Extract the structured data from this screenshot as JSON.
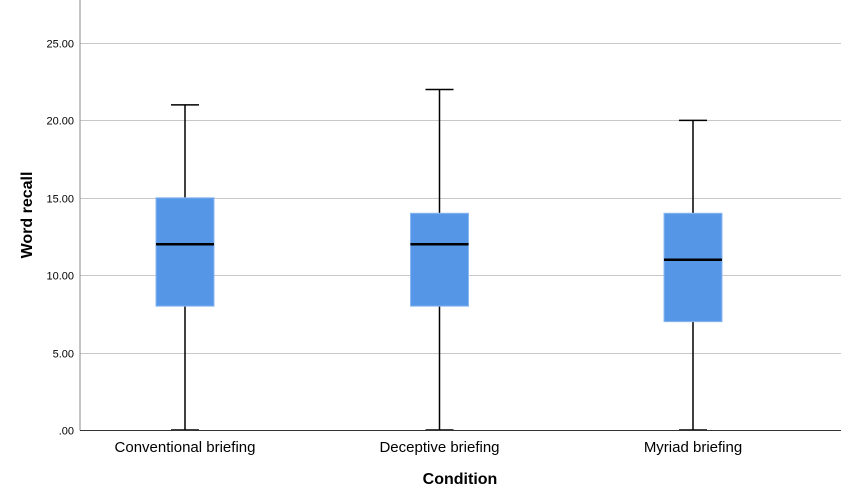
{
  "chart_data": {
    "type": "boxplot",
    "title": "",
    "xlabel": "Condition",
    "ylabel": "Word recall",
    "ylim": [
      0,
      27.5
    ],
    "yticks": [
      0,
      5,
      10,
      15,
      20,
      25
    ],
    "ytick_labels": [
      ".00",
      "5.00",
      "10.00",
      "15.00",
      "20.00",
      "25.00"
    ],
    "grid": "horizontal",
    "legend": null,
    "box_color": "#5596e6",
    "categories": [
      "Conventional briefing",
      "Deceptive briefing",
      "Myriad briefing"
    ],
    "series": [
      {
        "name": "Conventional briefing",
        "min": 0,
        "q1": 8,
        "median": 12,
        "q3": 15,
        "max": 21
      },
      {
        "name": "Deceptive briefing",
        "min": 0,
        "q1": 8,
        "median": 12,
        "q3": 14,
        "max": 22
      },
      {
        "name": "Myriad briefing",
        "min": 0,
        "q1": 7,
        "median": 11,
        "q3": 14,
        "max": 20
      }
    ]
  }
}
